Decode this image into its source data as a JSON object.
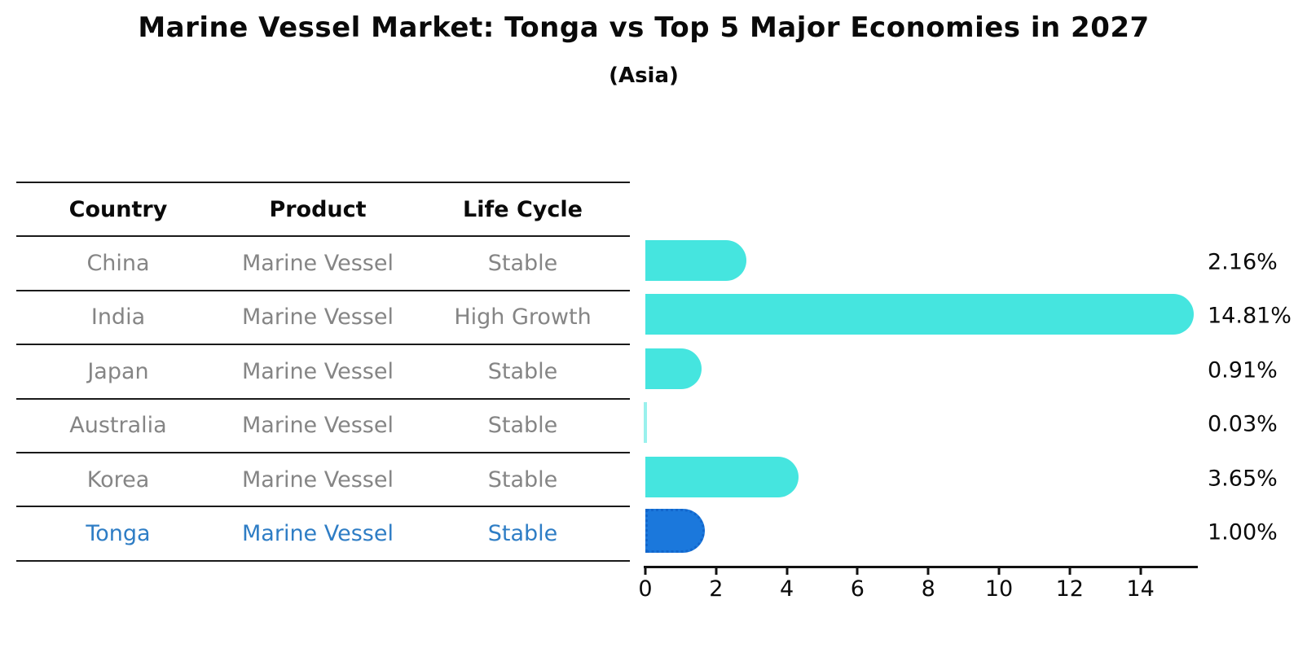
{
  "title": "Marine Vessel Market: Tonga vs Top 5 Major Economies in 2027",
  "subtitle": "(Asia)",
  "table": {
    "headers": [
      "Country",
      "Product",
      "Life Cycle"
    ],
    "rows": [
      {
        "country": "China",
        "product": "Marine Vessel",
        "life_cycle": "Stable",
        "highlight": false
      },
      {
        "country": "India",
        "product": "Marine Vessel",
        "life_cycle": "High Growth",
        "highlight": false
      },
      {
        "country": "Japan",
        "product": "Marine Vessel",
        "life_cycle": "Stable",
        "highlight": false
      },
      {
        "country": "Australia",
        "product": "Marine Vessel",
        "life_cycle": "Stable",
        "highlight": false
      },
      {
        "country": "Korea",
        "product": "Marine Vessel",
        "life_cycle": "Stable",
        "highlight": false
      },
      {
        "country": "Tonga",
        "product": "Marine Vessel",
        "life_cycle": "Stable",
        "highlight": true
      }
    ]
  },
  "chart_data": {
    "type": "bar",
    "orientation": "horizontal",
    "categories": [
      "China",
      "India",
      "Japan",
      "Australia",
      "Korea",
      "Tonga"
    ],
    "values": [
      2.16,
      14.81,
      0.91,
      0.03,
      3.65,
      1.0
    ],
    "value_labels": [
      "2.16%",
      "14.81%",
      "0.91%",
      "0.03%",
      "3.65%",
      "1.00%"
    ],
    "highlight_index": 5,
    "x_ticks": [
      0,
      2,
      4,
      6,
      8,
      10,
      12,
      14
    ],
    "xlim": [
      0,
      15.6
    ],
    "grid": false,
    "legend": false,
    "bar_color": "#45e5df",
    "highlight_bar_color": "#1b78dc",
    "highlight_text_color": "#2e7dc5",
    "axis_color": "#111111",
    "text_color": "#0a0a0a",
    "muted_text_color": "#858585"
  }
}
